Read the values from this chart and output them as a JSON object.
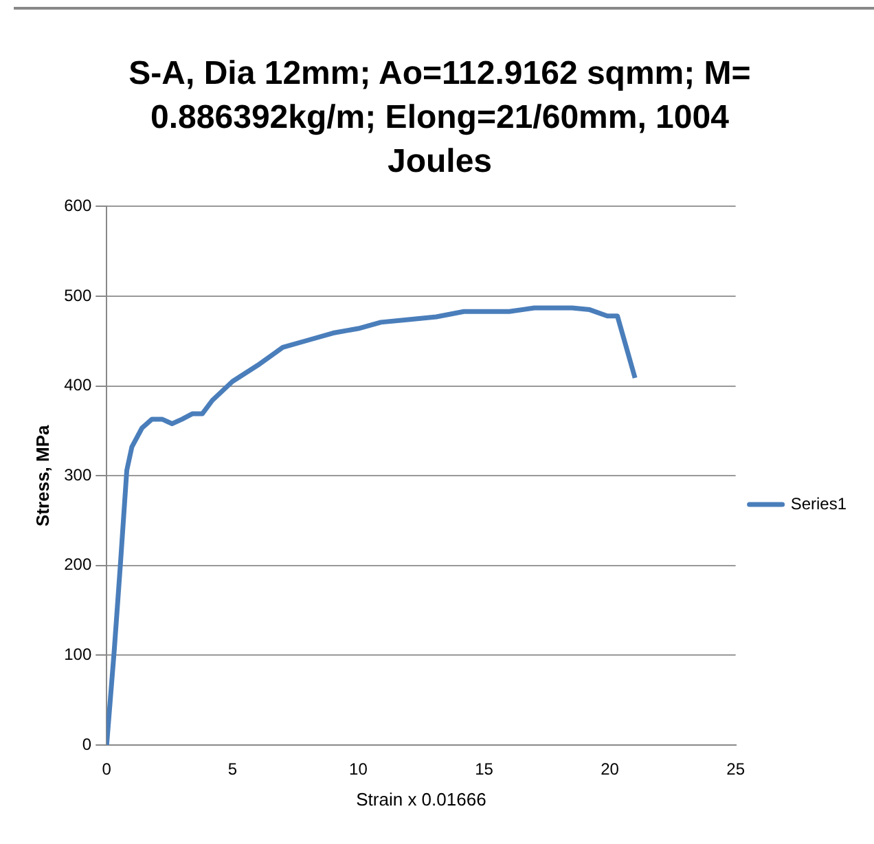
{
  "chart_data": {
    "type": "line",
    "title": "S-A, Dia 12mm; Ao=112.9162 sqmm; M= 0.886392kg/m;  Elong=21/60mm, 1004 Joules",
    "xlabel": "Strain x 0.01666",
    "ylabel": "Stress, MPa",
    "x": [
      0,
      0.3,
      0.55,
      0.8,
      1.0,
      1.4,
      1.8,
      2.2,
      2.6,
      3.0,
      3.4,
      3.8,
      4.2,
      5.0,
      6.0,
      7.0,
      8.0,
      9.0,
      10.0,
      10.9,
      12.0,
      13.1,
      14.2,
      16.0,
      17.0,
      18.5,
      19.2,
      19.9,
      20.3,
      21.0
    ],
    "series": [
      {
        "name": "Series1",
        "color": "#4a7ebb",
        "values": [
          0,
          105,
          203,
          306,
          332,
          353,
          363,
          363,
          358,
          363,
          369,
          369,
          384,
          405,
          423,
          443,
          451,
          459,
          464,
          471,
          474,
          477,
          483,
          483,
          487,
          487,
          485,
          478,
          478,
          409
        ]
      }
    ],
    "xlim": [
      0,
      25
    ],
    "xticks": [
      0,
      5,
      10,
      15,
      20,
      25
    ],
    "ylim": [
      0,
      600
    ],
    "yticks": [
      0,
      100,
      200,
      300,
      400,
      500,
      600
    ],
    "grid": "y",
    "legend": "right",
    "marker": "none",
    "line_style": "solid"
  }
}
